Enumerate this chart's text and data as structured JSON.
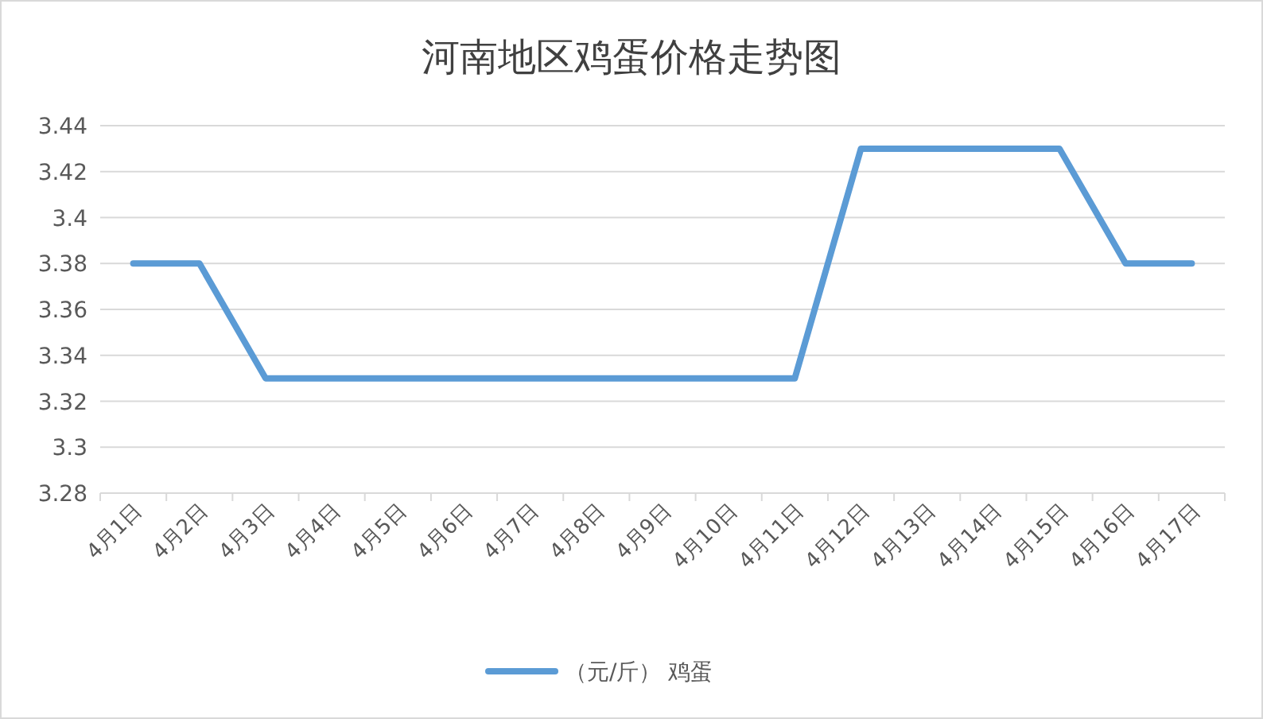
{
  "chart_data": {
    "type": "line",
    "title": "河南地区鸡蛋价格走势图",
    "categories": [
      "4月1日",
      "4月2日",
      "4月3日",
      "4月4日",
      "4月5日",
      "4月6日",
      "4月7日",
      "4月8日",
      "4月9日",
      "4月10日",
      "4月11日",
      "4月12日",
      "4月13日",
      "4月14日",
      "4月15日",
      "4月16日",
      "4月17日"
    ],
    "series": [
      {
        "name": "（元/斤） 鸡蛋",
        "color": "#5b9bd5",
        "values": [
          3.38,
          3.38,
          3.33,
          3.33,
          3.33,
          3.33,
          3.33,
          3.33,
          3.33,
          3.33,
          3.33,
          3.43,
          3.43,
          3.43,
          3.43,
          3.38,
          3.38
        ]
      }
    ],
    "ylim": [
      3.28,
      3.44
    ],
    "yticks": [
      3.28,
      3.3,
      3.32,
      3.34,
      3.36,
      3.38,
      3.4,
      3.42,
      3.44
    ],
    "grid": "y",
    "legend": "bottom"
  }
}
